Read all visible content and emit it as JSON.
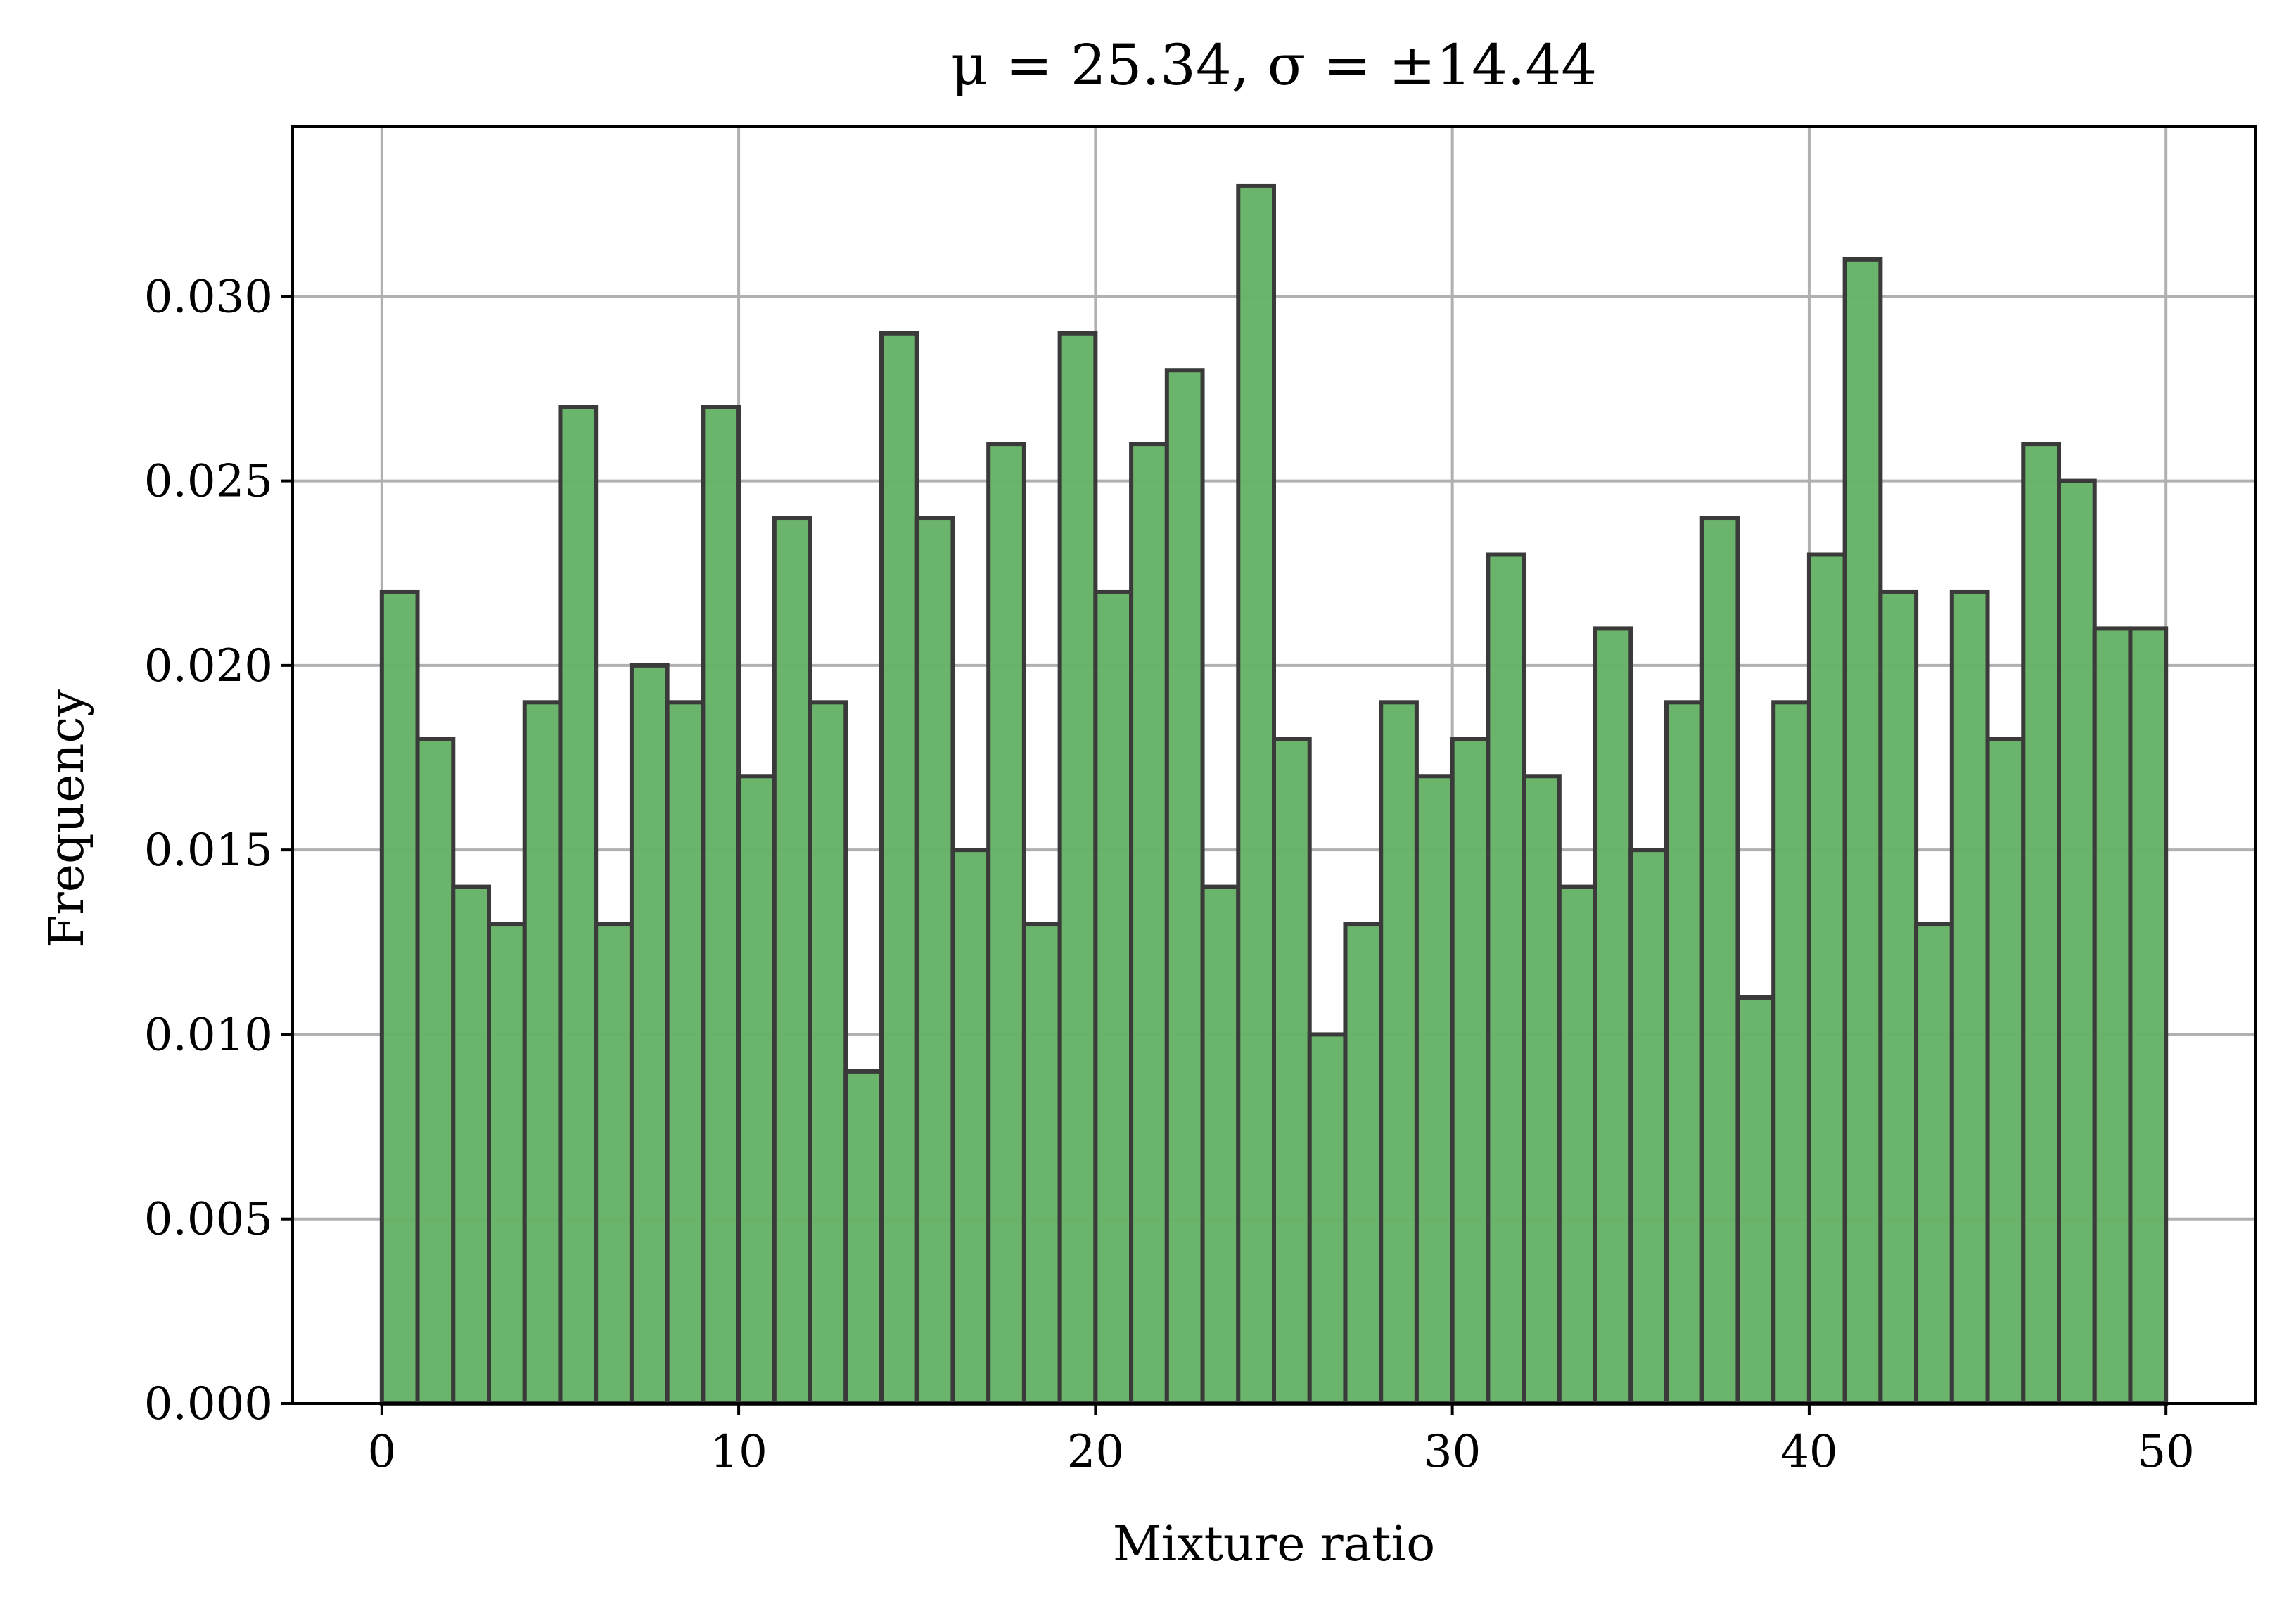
{
  "chart_data": {
    "type": "bar",
    "title": "μ = 25.34, σ = ±14.44",
    "xlabel": "Mixture ratio",
    "ylabel": "Frequency",
    "xlim": [
      -2.5,
      52.5
    ],
    "ylim": [
      0,
      0.0346
    ],
    "xticks": [
      0,
      10,
      20,
      30,
      40,
      50
    ],
    "yticks": [
      0.0,
      0.005,
      0.01,
      0.015,
      0.02,
      0.025,
      0.03
    ],
    "ytick_labels": [
      "0.000",
      "0.005",
      "0.010",
      "0.015",
      "0.020",
      "0.025",
      "0.030"
    ],
    "grid": true,
    "bin_edges": [
      0,
      1,
      2,
      3,
      4,
      5,
      6,
      7,
      8,
      9,
      10,
      11,
      12,
      13,
      14,
      15,
      16,
      17,
      18,
      19,
      20,
      21,
      22,
      23,
      24,
      25,
      26,
      27,
      28,
      29,
      30,
      31,
      32,
      33,
      34,
      35,
      36,
      37,
      38,
      39,
      40,
      41,
      42,
      43,
      44,
      45,
      46,
      47,
      48,
      49,
      50
    ],
    "values": [
      0.022,
      0.018,
      0.014,
      0.013,
      0.019,
      0.027,
      0.013,
      0.02,
      0.019,
      0.027,
      0.017,
      0.024,
      0.019,
      0.009,
      0.029,
      0.024,
      0.015,
      0.026,
      0.013,
      0.029,
      0.022,
      0.026,
      0.028,
      0.014,
      0.033,
      0.018,
      0.01,
      0.013,
      0.019,
      0.017,
      0.018,
      0.023,
      0.017,
      0.014,
      0.021,
      0.015,
      0.019,
      0.024,
      0.011,
      0.019,
      0.023,
      0.031,
      0.022,
      0.013,
      0.022,
      0.018,
      0.026,
      0.025,
      0.021,
      0.021
    ],
    "colors": {
      "bar_fill": "#66b266",
      "bar_edge": "#3a3a3a"
    }
  }
}
